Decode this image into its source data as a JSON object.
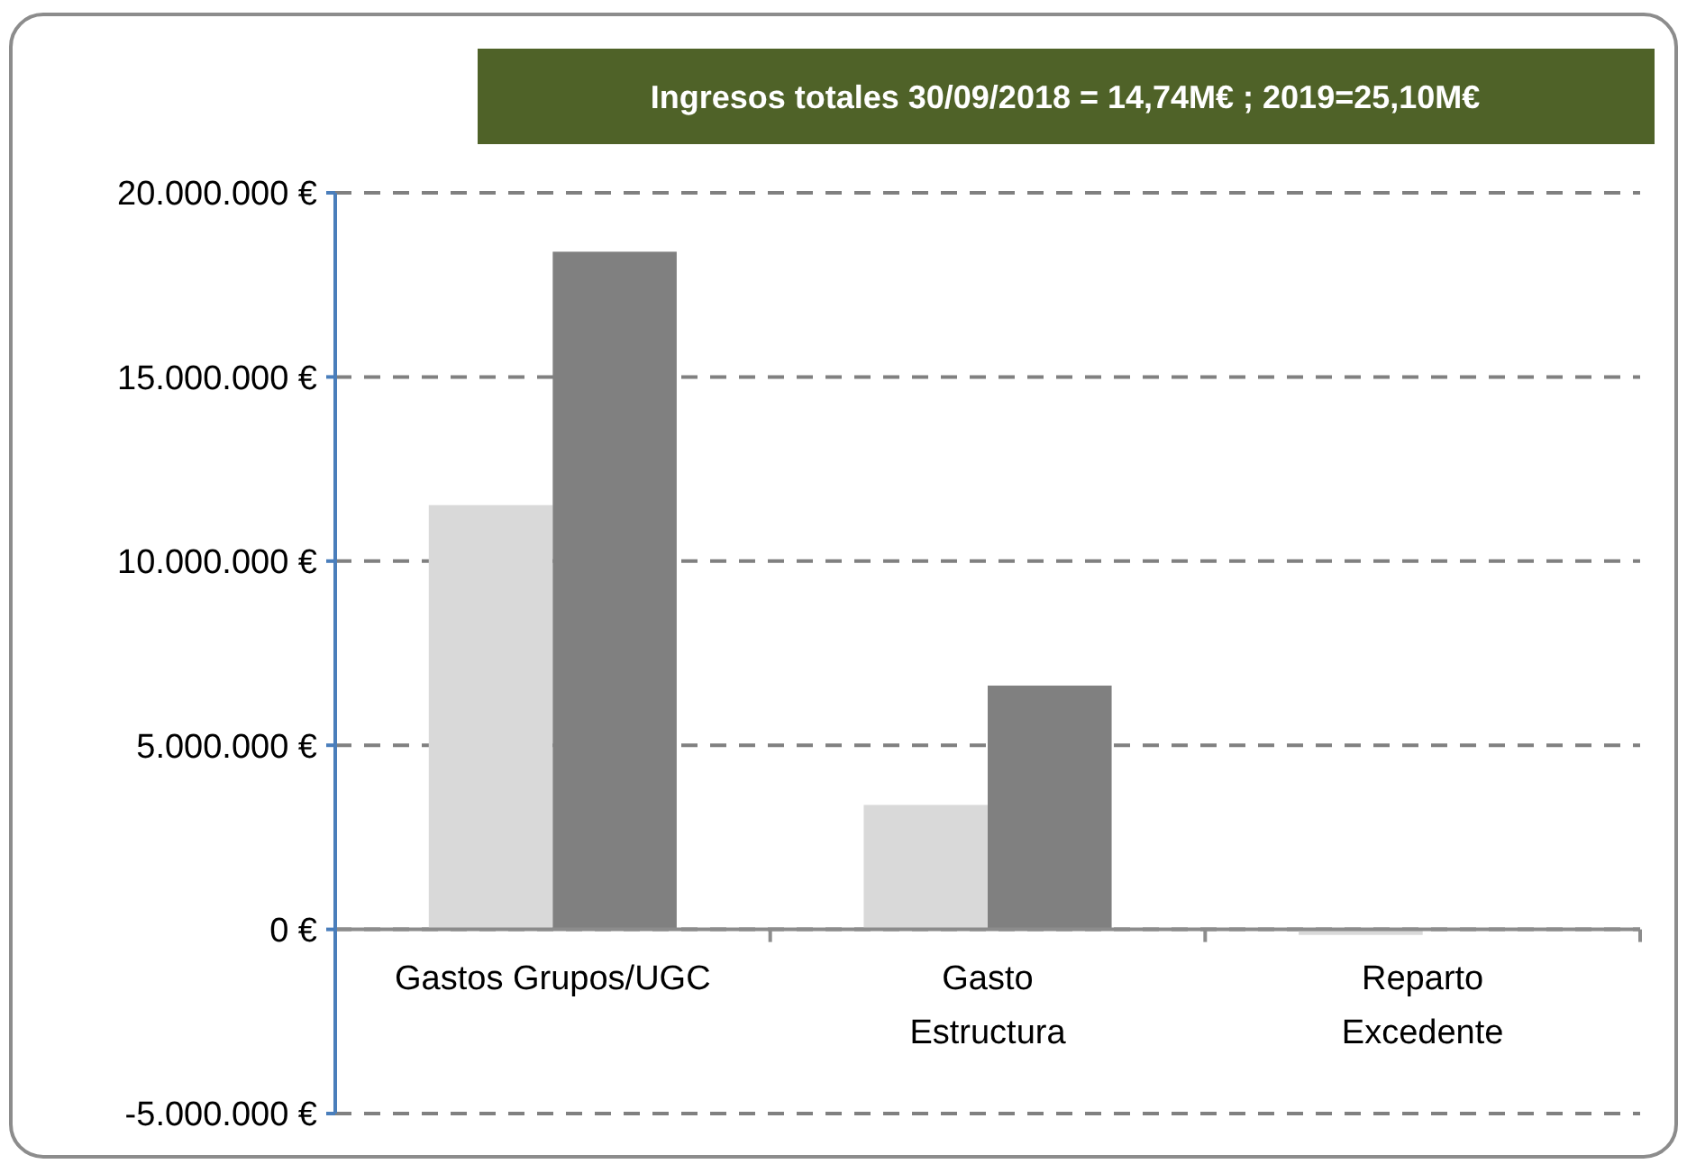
{
  "chart_data": {
    "type": "bar",
    "title": "Ingresos totales 30/09/2018  = 14,74M€ ; 2019=25,10M€",
    "categories": [
      "Gastos Grupos/UGC",
      "Gasto\nEstructura",
      "Reparto\nExcedente"
    ],
    "series": [
      {
        "color": "#d9d9d9",
        "values": [
          11520000,
          3380000,
          -150000
        ]
      },
      {
        "color": "#808080",
        "values": [
          18400000,
          6620000,
          0
        ]
      }
    ],
    "ylim": [
      -5000000,
      20000000
    ],
    "yticks": [
      {
        "value": -5000000,
        "label": "-5.000.000 €"
      },
      {
        "value": 0,
        "label": "0 €"
      },
      {
        "value": 5000000,
        "label": "5.000.000 €"
      },
      {
        "value": 10000000,
        "label": "10.000.000 €"
      },
      {
        "value": 15000000,
        "label": "15.000.000 €"
      },
      {
        "value": 20000000,
        "label": "20.000.000 €"
      }
    ],
    "grid": "y"
  }
}
